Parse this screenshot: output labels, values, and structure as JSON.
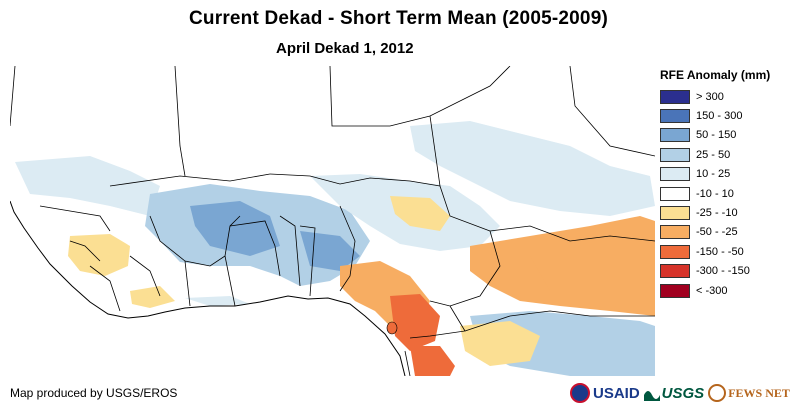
{
  "header": {
    "title": "Current Dekad - Short Term Mean (2005-2009)",
    "subtitle": "April Dekad 1, 2012"
  },
  "legend": {
    "title": "RFE Anomaly (mm)",
    "items": [
      {
        "label": "> 300",
        "color": "#2b2f8f"
      },
      {
        "label": "150 - 300",
        "color": "#4a74b8"
      },
      {
        "label": "50 - 150",
        "color": "#7aa6d2"
      },
      {
        "label": "25 - 50",
        "color": "#b2d0e6"
      },
      {
        "label": "10 - 25",
        "color": "#dcebf3"
      },
      {
        "label": "-10 - 10",
        "color": "#ffffff"
      },
      {
        "label": "-25 - -10",
        "color": "#fbdf93"
      },
      {
        "label": "-50 - -25",
        "color": "#f7ad62"
      },
      {
        "label": "-150 - -50",
        "color": "#ee6b3a"
      },
      {
        "label": "-300 - -150",
        "color": "#d6332a"
      },
      {
        "label": "< -300",
        "color": "#a0001f"
      }
    ]
  },
  "footer": {
    "credit": "Map produced by USGS/EROS",
    "logos": {
      "usaid": "USAID",
      "usgs": "USGS",
      "fews": "FEWS NET"
    }
  }
}
